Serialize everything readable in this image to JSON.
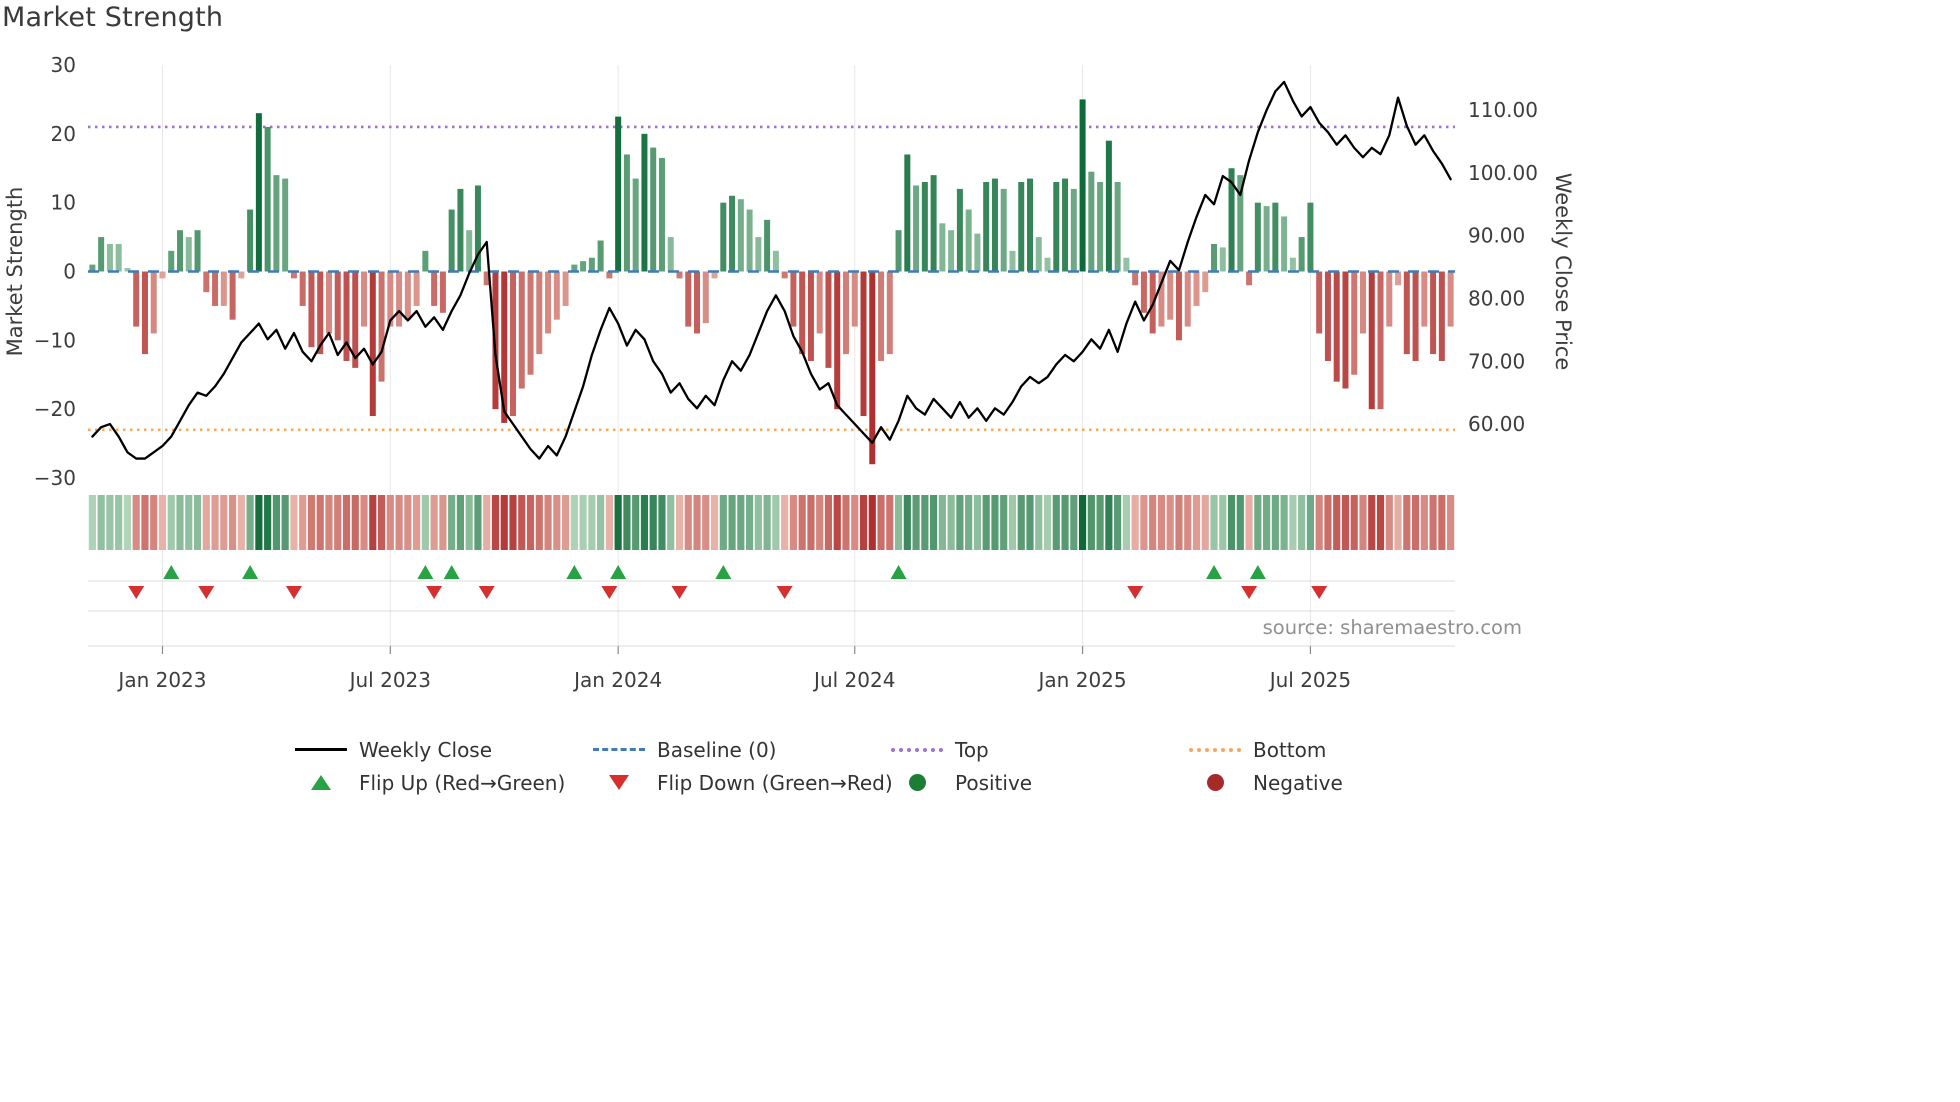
{
  "title": "Market Strength",
  "source": "source: sharemaestro.com",
  "legend": {
    "weekly_close": "Weekly Close",
    "baseline": "Baseline (0)",
    "top": "Top",
    "bottom": "Bottom",
    "flip_up": "Flip Up (Red→Green)",
    "flip_down": "Flip Down (Green→Red)",
    "positive": "Positive",
    "negative": "Negative"
  },
  "colors": {
    "title_text": "#3a3a3a",
    "axis_text": "#3d3d3d",
    "source_text": "#909090",
    "grid_line": "#e7e7e7",
    "rule_line": "#dcdcdc",
    "price_line": "#000000",
    "baseline_line": "#3f7cb8",
    "top_line": "#9b72cf",
    "bottom_line": "#f3a960",
    "flip_up": "#27a343",
    "flip_down": "#d62f2f",
    "positive_dot": "#1b7e33",
    "negative_dot": "#a52a2a",
    "bar_positive_light": "#d8eed8",
    "bar_positive_dark": "#0d6b38",
    "bar_negative_light": "#f7d6c9",
    "bar_negative_dark": "#b03030"
  },
  "axes": {
    "left": {
      "label": "Market Strength",
      "tick_labels": [
        "30",
        "20",
        "10",
        "0",
        "−10",
        "−20",
        "−30"
      ],
      "tick_values": [
        30,
        20,
        10,
        0,
        -10,
        -20,
        -30
      ]
    },
    "right": {
      "label": "Weekly Close Price",
      "tick_labels": [
        "110.00",
        "100.00",
        "90.00",
        "80.00",
        "70.00",
        "60.00"
      ],
      "tick_values": [
        110,
        100,
        90,
        80,
        70,
        60
      ]
    },
    "x": {
      "tick_labels": [
        "Jan 2023",
        "Jul 2023",
        "Jan 2024",
        "Jul 2024",
        "Jan 2025",
        "Jul 2025"
      ],
      "tick_week_indices": [
        8,
        34,
        60,
        87,
        113,
        139
      ]
    }
  },
  "chart_data": {
    "type": "combo",
    "title": "Market Strength",
    "n_weeks": 156,
    "x_range_note": "weekly data, approx Nov 2022 through Oct 2025",
    "left_axis_range": [
      -30,
      30
    ],
    "right_axis_range_est": [
      51.4,
      117.2
    ],
    "grid": "vertical gridlines at Jan/Jul ticks",
    "legend_position": "bottom, two rows",
    "series": [
      {
        "name": "Market Strength",
        "type": "bar",
        "axis": "left",
        "values": [
          1,
          5,
          4,
          4,
          0.5,
          -8,
          -12,
          -9,
          -1,
          3,
          6,
          5,
          6,
          -3,
          -5,
          -5,
          -7,
          -1,
          9,
          23,
          21,
          14,
          13.5,
          -1,
          -5,
          -11,
          -12,
          -9,
          -10,
          -13,
          -14,
          -8,
          -21,
          -16,
          -8,
          -8,
          -7,
          -5,
          3,
          -5,
          -6,
          9,
          12,
          6,
          12.5,
          -2,
          -20,
          -22,
          -21,
          -17,
          -15,
          -12,
          -9,
          -7,
          -5,
          1,
          1.5,
          2,
          4.5,
          -1,
          22.5,
          17,
          13.5,
          20,
          18,
          16.5,
          5,
          -1,
          -8,
          -9,
          -7.5,
          -1,
          10,
          11,
          10.5,
          9,
          5,
          7.5,
          3,
          -1,
          -8,
          -12,
          -13,
          -9,
          -14,
          -20,
          -12,
          -8,
          -21,
          -28,
          -13,
          -12,
          6,
          17,
          12.5,
          13,
          14,
          7,
          6,
          12,
          9,
          5.5,
          13,
          13.5,
          12,
          3,
          13,
          13.5,
          5,
          2,
          13,
          13.5,
          12,
          25,
          14.5,
          13,
          19,
          13,
          2,
          -2,
          -6,
          -9,
          -8,
          -7,
          -10,
          -8,
          -5,
          -3,
          4,
          3.5,
          15,
          14,
          -2,
          10,
          9.5,
          10,
          8,
          2,
          5,
          10,
          -9,
          -13,
          -16,
          -17,
          -15,
          -9,
          -20,
          -20,
          -8,
          -2,
          -12,
          -13,
          -8,
          -12,
          -13,
          -8
        ]
      },
      {
        "name": "Weekly Close",
        "type": "line",
        "axis": "right",
        "values": [
          58,
          59.5,
          60,
          58,
          55.5,
          54.5,
          54.5,
          55.5,
          56.5,
          58,
          60.5,
          63,
          65,
          64.5,
          66,
          68,
          70.5,
          73,
          74.5,
          76,
          73.5,
          75,
          72,
          74.5,
          71.5,
          70,
          72.5,
          74.5,
          71,
          73,
          70.5,
          72,
          69.5,
          71.5,
          76.5,
          78,
          76.5,
          78,
          75.5,
          77,
          75,
          78,
          80.5,
          84,
          87,
          89,
          71,
          62,
          60,
          58,
          56,
          54.5,
          56.5,
          55,
          58,
          62,
          66,
          71,
          75,
          78.5,
          76,
          72.5,
          75,
          73.5,
          70,
          68,
          65,
          66.5,
          64,
          62.5,
          64.5,
          63,
          67,
          70,
          68.5,
          71,
          74.5,
          78,
          80.5,
          78,
          74,
          71.5,
          68,
          65.5,
          66.5,
          63,
          61.5,
          60,
          58.5,
          57,
          59.5,
          57.5,
          60.5,
          64.5,
          62.5,
          61.5,
          64,
          62.5,
          61,
          63.5,
          61,
          62.5,
          60.5,
          62.5,
          61.5,
          63.5,
          66,
          67.5,
          66.5,
          67.5,
          69.5,
          71,
          70,
          71.5,
          73.5,
          72,
          75,
          71.5,
          76,
          79.5,
          76.5,
          79,
          82.5,
          86,
          84.5,
          89,
          93,
          96.5,
          95,
          99.5,
          98.5,
          96.5,
          102,
          106.5,
          110,
          113,
          114.5,
          111.5,
          109,
          110.5,
          108,
          106.5,
          104.5,
          106,
          104,
          102.5,
          104,
          103,
          106,
          112,
          107.5,
          104.5,
          106,
          103.5,
          101.5,
          99
        ]
      },
      {
        "name": "Baseline (0)",
        "type": "hline",
        "axis": "left",
        "value": 0,
        "style": "dashed"
      },
      {
        "name": "Top",
        "type": "hline",
        "axis": "left",
        "value": 21,
        "style": "dotted"
      },
      {
        "name": "Bottom",
        "type": "hline",
        "axis": "left",
        "value": -23,
        "style": "dotted"
      }
    ],
    "heatmap_strip": "weekly cells colored by Market Strength sign and magnitude (green positive, red negative)",
    "flip_up_indices": [
      9,
      18,
      38,
      41,
      55,
      60,
      72,
      92,
      128,
      133
    ],
    "flip_down_indices": [
      5,
      13,
      23,
      39,
      45,
      59,
      67,
      79,
      119,
      132,
      140
    ]
  }
}
